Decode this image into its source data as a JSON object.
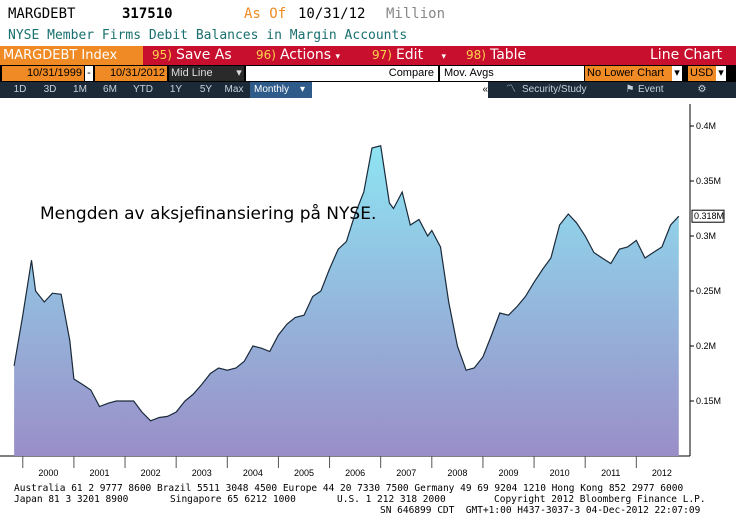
{
  "header": {
    "ticker": "MARGDEBT",
    "value": "317510",
    "as_of_label": "As Of",
    "as_of_date": "10/31/12",
    "unit": "Million",
    "description": "NYSE Member Firms Debit Balances in Margin Accounts"
  },
  "toolbar": {
    "index_label": "MARGDEBT Index",
    "save_num": "95)",
    "save_label": "Save As",
    "actions_num": "96)",
    "actions_label": "Actions",
    "edit_num": "97)",
    "edit_label": "Edit",
    "table_num": "98)",
    "table_label": "Table",
    "chart_type": "Line Chart"
  },
  "controls": {
    "start_date": "10/31/1999",
    "dash": "-",
    "end_date": "10/31/2012",
    "line_mode": "Mid Line",
    "compare_label": "Compare",
    "mov_avgs_label": "Mov. Avgs",
    "lower_chart": "No Lower Chart",
    "currency": "USD"
  },
  "periods": {
    "items": [
      "1D",
      "3D",
      "1M",
      "6M",
      "YTD",
      "1Y",
      "5Y",
      "Max"
    ],
    "selected": "Monthly",
    "arrow": "«",
    "security_study": "Security/Study",
    "event": "Event"
  },
  "annotation": "Mengden av aksjefinansiering på NYSE.",
  "chart_data": {
    "type": "area",
    "x_tick_labels": [
      "2000",
      "2001",
      "2002",
      "2003",
      "2004",
      "2005",
      "2006",
      "2007",
      "2008",
      "2009",
      "2010",
      "2011",
      "2012"
    ],
    "y_tick_labels": [
      "0.4M",
      "0.35M",
      "0.3M",
      "0.25M",
      "0.2M",
      "0.15M"
    ],
    "y_ticks": [
      0.4,
      0.35,
      0.3,
      0.25,
      0.2,
      0.15
    ],
    "ylim": [
      0.1,
      0.42
    ],
    "last_value_label": "0.318M",
    "last_value": 0.318,
    "x": [
      1999.83,
      2000.0,
      2000.17,
      2000.25,
      2000.42,
      2000.58,
      2000.75,
      2000.92,
      2001.0,
      2001.17,
      2001.33,
      2001.5,
      2001.67,
      2001.83,
      2002.0,
      2002.17,
      2002.33,
      2002.5,
      2002.67,
      2002.83,
      2003.0,
      2003.17,
      2003.33,
      2003.5,
      2003.67,
      2003.83,
      2004.0,
      2004.17,
      2004.33,
      2004.5,
      2004.67,
      2004.83,
      2005.0,
      2005.17,
      2005.33,
      2005.5,
      2005.67,
      2005.83,
      2006.0,
      2006.17,
      2006.33,
      2006.5,
      2006.67,
      2006.83,
      2007.0,
      2007.17,
      2007.25,
      2007.42,
      2007.58,
      2007.75,
      2007.92,
      2008.0,
      2008.17,
      2008.33,
      2008.5,
      2008.67,
      2008.83,
      2009.0,
      2009.17,
      2009.33,
      2009.5,
      2009.67,
      2009.83,
      2010.0,
      2010.17,
      2010.33,
      2010.5,
      2010.67,
      2010.83,
      2011.0,
      2011.17,
      2011.33,
      2011.5,
      2011.67,
      2011.83,
      2012.0,
      2012.17,
      2012.33,
      2012.5,
      2012.67,
      2012.83
    ],
    "y": [
      0.182,
      0.228,
      0.278,
      0.25,
      0.24,
      0.248,
      0.247,
      0.205,
      0.17,
      0.165,
      0.16,
      0.145,
      0.148,
      0.15,
      0.15,
      0.15,
      0.14,
      0.132,
      0.135,
      0.136,
      0.14,
      0.15,
      0.156,
      0.165,
      0.175,
      0.18,
      0.178,
      0.18,
      0.186,
      0.2,
      0.198,
      0.195,
      0.21,
      0.22,
      0.226,
      0.228,
      0.245,
      0.25,
      0.27,
      0.288,
      0.295,
      0.32,
      0.34,
      0.38,
      0.382,
      0.33,
      0.325,
      0.34,
      0.31,
      0.315,
      0.3,
      0.305,
      0.29,
      0.24,
      0.2,
      0.178,
      0.18,
      0.19,
      0.21,
      0.23,
      0.228,
      0.236,
      0.245,
      0.258,
      0.27,
      0.28,
      0.31,
      0.32,
      0.312,
      0.3,
      0.285,
      0.28,
      0.275,
      0.288,
      0.29,
      0.296,
      0.28,
      0.285,
      0.29,
      0.31,
      0.318
    ]
  },
  "footer": {
    "line1": "Australia 61 2 9777 8600 Brazil 5511 3048 4500 Europe 44 20 7330 7500 Germany 49 69 9204 1210 Hong Kong 852 2977 6000",
    "line2a": "Japan 81 3 3201 8900",
    "line2b": "Singapore 65 6212 1000",
    "line2c": "U.S. 1 212 318 2000",
    "line2d": "Copyright 2012 Bloomberg Finance L.P.",
    "line3": "SN 646899 CDT  GMT+1:00 H437-3037-3 04-Dec-2012 22:07:09"
  },
  "colors": {
    "toolbar_red": "#c8102e",
    "toolbar_orange": "#f08a24",
    "area_top": "#8ee4f2",
    "area_bottom": "#9a8ec8"
  }
}
